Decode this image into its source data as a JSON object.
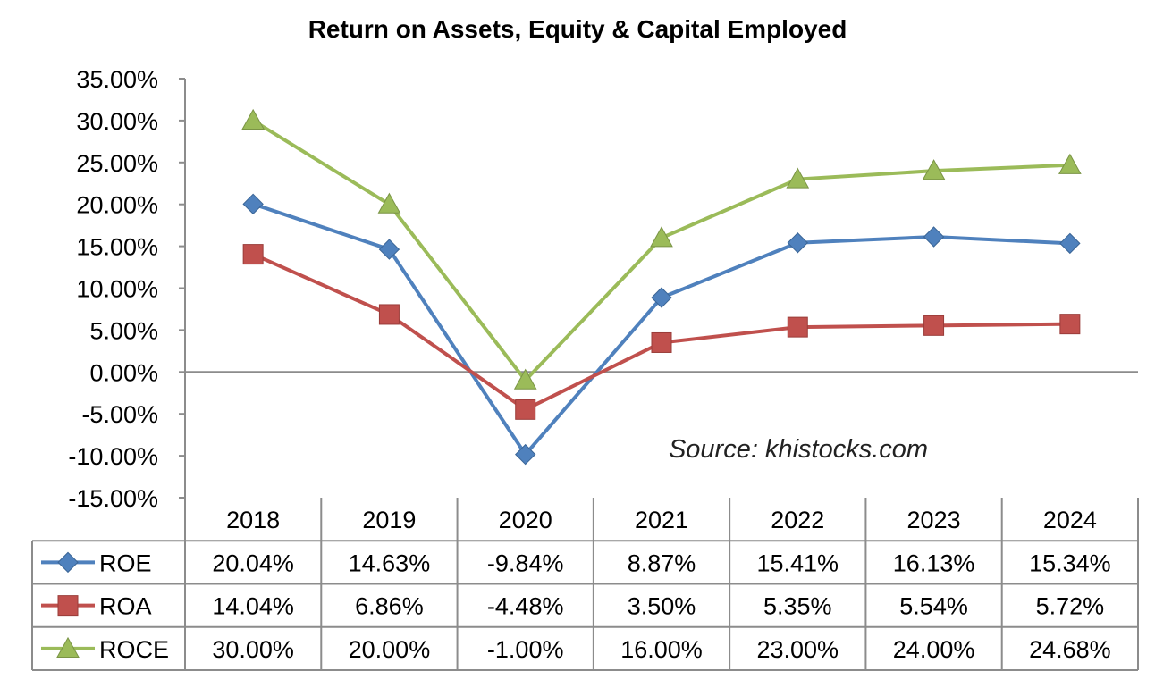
{
  "chart_data": {
    "type": "line",
    "title": "Return on Assets, Equity & Capital Employed",
    "annotation": "Source: khistocks.com",
    "categories": [
      "2018",
      "2019",
      "2020",
      "2021",
      "2022",
      "2023",
      "2024"
    ],
    "y_ticks": [
      "35.00%",
      "30.00%",
      "25.00%",
      "20.00%",
      "15.00%",
      "10.00%",
      "5.00%",
      "0.00%",
      "-5.00%",
      "-10.00%",
      "-15.00%"
    ],
    "ylim": [
      -15,
      35
    ],
    "y_step": 5,
    "grid": false,
    "legend": "data-table",
    "series": [
      {
        "name": "ROE",
        "color": "#4f81bd",
        "marker": "diamond",
        "values": [
          20.04,
          14.63,
          -9.84,
          8.87,
          15.41,
          16.13,
          15.34
        ],
        "labels": [
          "20.04%",
          "14.63%",
          "-9.84%",
          "8.87%",
          "15.41%",
          "16.13%",
          "15.34%"
        ]
      },
      {
        "name": "ROA",
        "color": "#c0504d",
        "marker": "square",
        "values": [
          14.04,
          6.86,
          -4.48,
          3.5,
          5.35,
          5.54,
          5.72
        ],
        "labels": [
          "14.04%",
          "6.86%",
          "-4.48%",
          "3.50%",
          "5.35%",
          "5.54%",
          "5.72%"
        ]
      },
      {
        "name": "ROCE",
        "color": "#9bbb59",
        "marker": "triangle",
        "values": [
          30.0,
          20.0,
          -1.0,
          16.0,
          23.0,
          24.0,
          24.68
        ],
        "labels": [
          "30.00%",
          "20.00%",
          "-1.00%",
          "16.00%",
          "23.00%",
          "24.00%",
          "24.68%"
        ]
      }
    ]
  }
}
